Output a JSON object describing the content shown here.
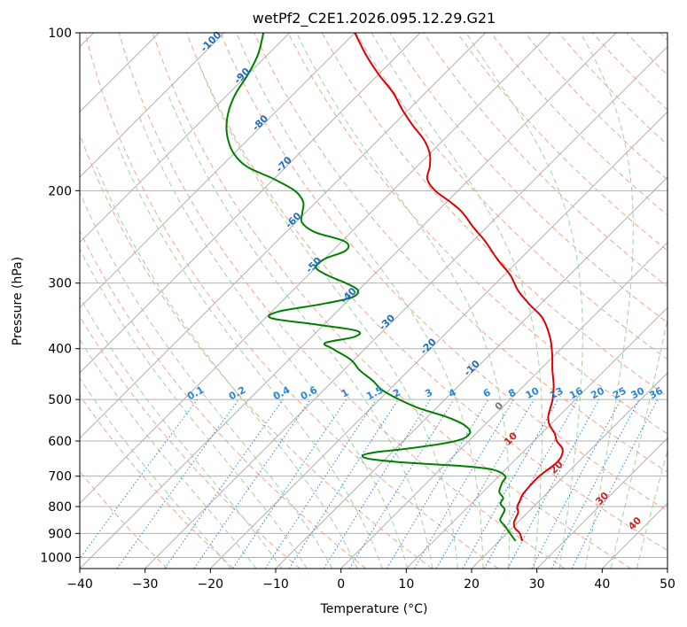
{
  "chart_data": {
    "type": "line",
    "title": "wetPf2_C2E1.2026.095.12.29.G21",
    "xlabel": "Temperature (°C)",
    "ylabel": "Pressure (hPa)",
    "xlim": [
      -40,
      50
    ],
    "ylim": [
      1050,
      100
    ],
    "y_scale": "log",
    "skew": "skew-T log-p",
    "grid": true,
    "x_ticks": [
      -40,
      -30,
      -20,
      -10,
      0,
      10,
      20,
      30,
      40,
      50
    ],
    "y_ticks": [
      1000,
      900,
      800,
      700,
      600,
      500,
      400,
      300,
      200,
      100
    ],
    "colors": {
      "temperature": "#e00000",
      "dewpoint": "#008000",
      "isotherm": "#b0b0b0",
      "dry_adiabat": "#f4a58a",
      "moist_adiabat": "#9fd39f",
      "mixing_ratio": "#2a85d8",
      "isotherm_label": "#1f6fbf",
      "mixing_label": "#2a85d8",
      "moist_label": "#cc2222",
      "zero_label": "#777777"
    },
    "series": [
      {
        "name": "",
        "role": "temperature",
        "p": [
          930,
          900,
          880,
          860,
          840,
          820,
          800,
          780,
          760,
          740,
          720,
          700,
          680,
          660,
          640,
          620,
          600,
          580,
          560,
          540,
          520,
          500,
          470,
          440,
          410,
          380,
          350,
          330,
          310,
          290,
          270,
          250,
          235,
          220,
          210,
          200,
          190,
          180,
          170,
          160,
          150,
          140,
          130,
          120,
          110,
          100
        ],
        "t": [
          23.5,
          22.0,
          20.5,
          19.5,
          19.0,
          18.5,
          17.5,
          17.0,
          16.5,
          16.3,
          16.2,
          16.2,
          16.5,
          16.8,
          16.5,
          15.5,
          13.5,
          12.0,
          10.0,
          8.5,
          7.5,
          6.5,
          4.5,
          2.0,
          -0.5,
          -3.5,
          -7.5,
          -11.5,
          -15.5,
          -19.0,
          -23.5,
          -28.0,
          -32.0,
          -36.0,
          -39.5,
          -43.5,
          -46.5,
          -48.0,
          -50.0,
          -53.0,
          -57.0,
          -61.0,
          -65.0,
          -70.0,
          -75.0,
          -80.0
        ]
      },
      {
        "name": "",
        "role": "dewpoint",
        "p": [
          930,
          900,
          870,
          850,
          830,
          810,
          790,
          770,
          750,
          720,
          700,
          680,
          670,
          660,
          650,
          640,
          630,
          620,
          600,
          580,
          560,
          540,
          520,
          500,
          480,
          460,
          440,
          420,
          400,
          390,
          380,
          370,
          360,
          350,
          340,
          330,
          320,
          310,
          300,
          290,
          280,
          270,
          260,
          250,
          240,
          230,
          220,
          210,
          200,
          190,
          180,
          170,
          160,
          150,
          140,
          130,
          120,
          110,
          100
        ],
        "td": [
          22.5,
          20.5,
          18.5,
          17.0,
          16.5,
          16.0,
          14.5,
          14.0,
          12.5,
          11.5,
          11.0,
          8.0,
          3.0,
          -6.0,
          -12.0,
          -14.0,
          -12.5,
          -8.0,
          -2.0,
          -1.0,
          -3.0,
          -7.0,
          -12.5,
          -17.0,
          -21.0,
          -24.0,
          -27.5,
          -30.5,
          -35.0,
          -37.0,
          -33.5,
          -34.0,
          -41.0,
          -49.0,
          -49.0,
          -44.0,
          -40.0,
          -40.0,
          -43.0,
          -47.0,
          -50.0,
          -50.0,
          -48.0,
          -49.5,
          -55.5,
          -59.0,
          -60.5,
          -62.0,
          -65.0,
          -70.0,
          -76.0,
          -80.0,
          -83.0,
          -85.5,
          -87.5,
          -89.0,
          -90.0,
          -91.5,
          -94.0
        ]
      }
    ],
    "mixing_ratio_labels": [
      "0.1",
      "0.2",
      "0.4",
      "0.6",
      "1",
      "1.5",
      "2",
      "3",
      "4",
      "6",
      "8",
      "10",
      "13",
      "16",
      "20",
      "25",
      "30",
      "36"
    ],
    "mixing_ratio_values": [
      0.1,
      0.2,
      0.4,
      0.6,
      1,
      1.5,
      2,
      3,
      4,
      6,
      8,
      10,
      13,
      16,
      20,
      25,
      30,
      36
    ],
    "isotherm_labels": [
      "-100",
      "-90",
      "-80",
      "-70",
      "-60",
      "-50",
      "-40",
      "-30",
      "-20",
      "-10",
      "0"
    ],
    "isotherm_label_values": [
      -100,
      -90,
      -80,
      -70,
      -60,
      -50,
      -40,
      -30,
      -20,
      -10,
      0
    ],
    "moist_adiabat_labels": [
      "10",
      "20",
      "30",
      "40"
    ],
    "moist_adiabat_label_values": [
      10,
      20,
      30,
      40
    ],
    "annotations": []
  }
}
